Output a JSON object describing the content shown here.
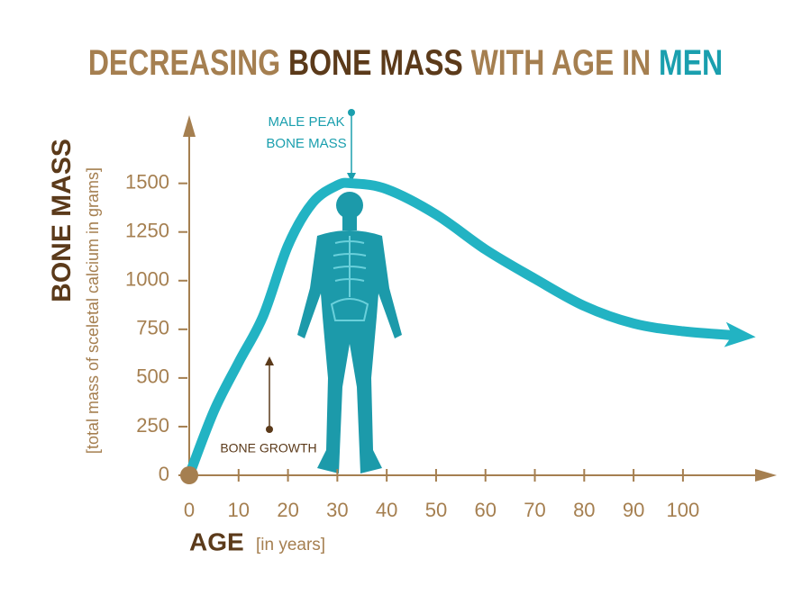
{
  "chart_data": {
    "type": "line",
    "title_parts": [
      {
        "text": "DECREASING",
        "color": "#a57f50"
      },
      {
        "text": "BONE MASS",
        "color": "#5b3a1a"
      },
      {
        "text": "WITH AGE IN",
        "color": "#a57f50"
      },
      {
        "text": "MEN",
        "color": "#1a9fae"
      }
    ],
    "y_label": "BONE MASS",
    "y_sublabel": "[total mass of sceletal calcium in grams]",
    "x_label": "AGE",
    "x_sublabel": "[in years]",
    "annotations": {
      "peak": [
        "MALE PEAK",
        "BONE MASS"
      ],
      "growth": "BONE GROWTH"
    },
    "series": [
      {
        "name": "Bone mass",
        "color": "#22b3c3",
        "x": [
          0,
          5,
          10,
          15,
          20,
          25,
          30,
          33,
          40,
          50,
          60,
          70,
          80,
          90,
          100,
          110
        ],
        "values": [
          0,
          330,
          580,
          820,
          1180,
          1400,
          1490,
          1500,
          1470,
          1340,
          1160,
          1010,
          870,
          780,
          740,
          720
        ]
      }
    ],
    "xlim": [
      0,
      119
    ],
    "xticks": [
      0,
      10,
      20,
      30,
      40,
      50,
      60,
      70,
      80,
      90,
      100
    ],
    "ylim": [
      0,
      1850
    ],
    "yticks": [
      0,
      250,
      500,
      750,
      1000,
      1250,
      1500
    ]
  }
}
